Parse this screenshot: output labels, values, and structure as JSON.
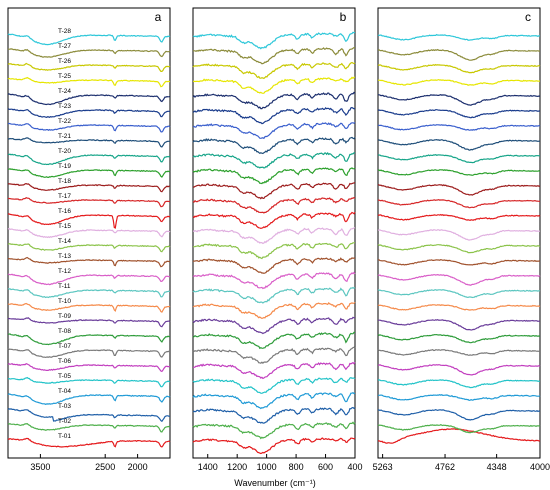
{
  "chart_data": {
    "type": "line",
    "xlabel": "Wavenumber (cm⁻¹)",
    "series": [
      {
        "name": "T-01",
        "color": "#e41a1c"
      },
      {
        "name": "T-02",
        "color": "#4daf4a"
      },
      {
        "name": "T-03",
        "color": "#1f5fa8"
      },
      {
        "name": "T-04",
        "color": "#1f9ad6"
      },
      {
        "name": "T-05",
        "color": "#22c3c8"
      },
      {
        "name": "T-06",
        "color": "#c23fbf"
      },
      {
        "name": "T-07",
        "color": "#7a7a7a"
      },
      {
        "name": "T-08",
        "color": "#2e9c3a"
      },
      {
        "name": "T-09",
        "color": "#6a3d9a"
      },
      {
        "name": "T-10",
        "color": "#f58a4a"
      },
      {
        "name": "T-11",
        "color": "#5cc6c0"
      },
      {
        "name": "T-12",
        "color": "#d95fc8"
      },
      {
        "name": "T-13",
        "color": "#a0522d"
      },
      {
        "name": "T-14",
        "color": "#8bc34a"
      },
      {
        "name": "T-15",
        "color": "#e0b0e0"
      },
      {
        "name": "T-16",
        "color": "#e41a1c"
      },
      {
        "name": "T-17",
        "color": "#d62728"
      },
      {
        "name": "T-18",
        "color": "#9c1c1c"
      },
      {
        "name": "T-19",
        "color": "#2ca02c"
      },
      {
        "name": "T-20",
        "color": "#17a589"
      },
      {
        "name": "T-21",
        "color": "#1f4e79"
      },
      {
        "name": "T-22",
        "color": "#3a5fcd"
      },
      {
        "name": "T-23",
        "color": "#1a3c8c"
      },
      {
        "name": "T-24",
        "color": "#1c2f6e"
      },
      {
        "name": "T-25",
        "color": "#e6e600"
      },
      {
        "name": "T-26",
        "color": "#c8c800"
      },
      {
        "name": "T-27",
        "color": "#8b8b3a"
      },
      {
        "name": "T-28",
        "color": "#2ec7d9"
      }
    ],
    "panels": [
      {
        "letter": "a",
        "xlim": [
          4000,
          1500
        ],
        "ticks": [
          3500,
          2500,
          2000
        ],
        "tick_labels": [
          "3500",
          "2500",
          "2000"
        ]
      },
      {
        "letter": "b",
        "xlim": [
          1500,
          400
        ],
        "ticks": [
          1400,
          1200,
          1000,
          800,
          600,
          400
        ],
        "tick_labels": [
          "1400",
          "1200",
          "1000",
          "800",
          "600",
          "400"
        ]
      },
      {
        "letter": "c",
        "xlim": [
          5300,
          4000
        ],
        "ticks": [
          5263,
          4762,
          4348,
          4000
        ],
        "tick_labels": [
          "5263",
          "4762",
          "4348",
          "4000"
        ]
      }
    ]
  }
}
